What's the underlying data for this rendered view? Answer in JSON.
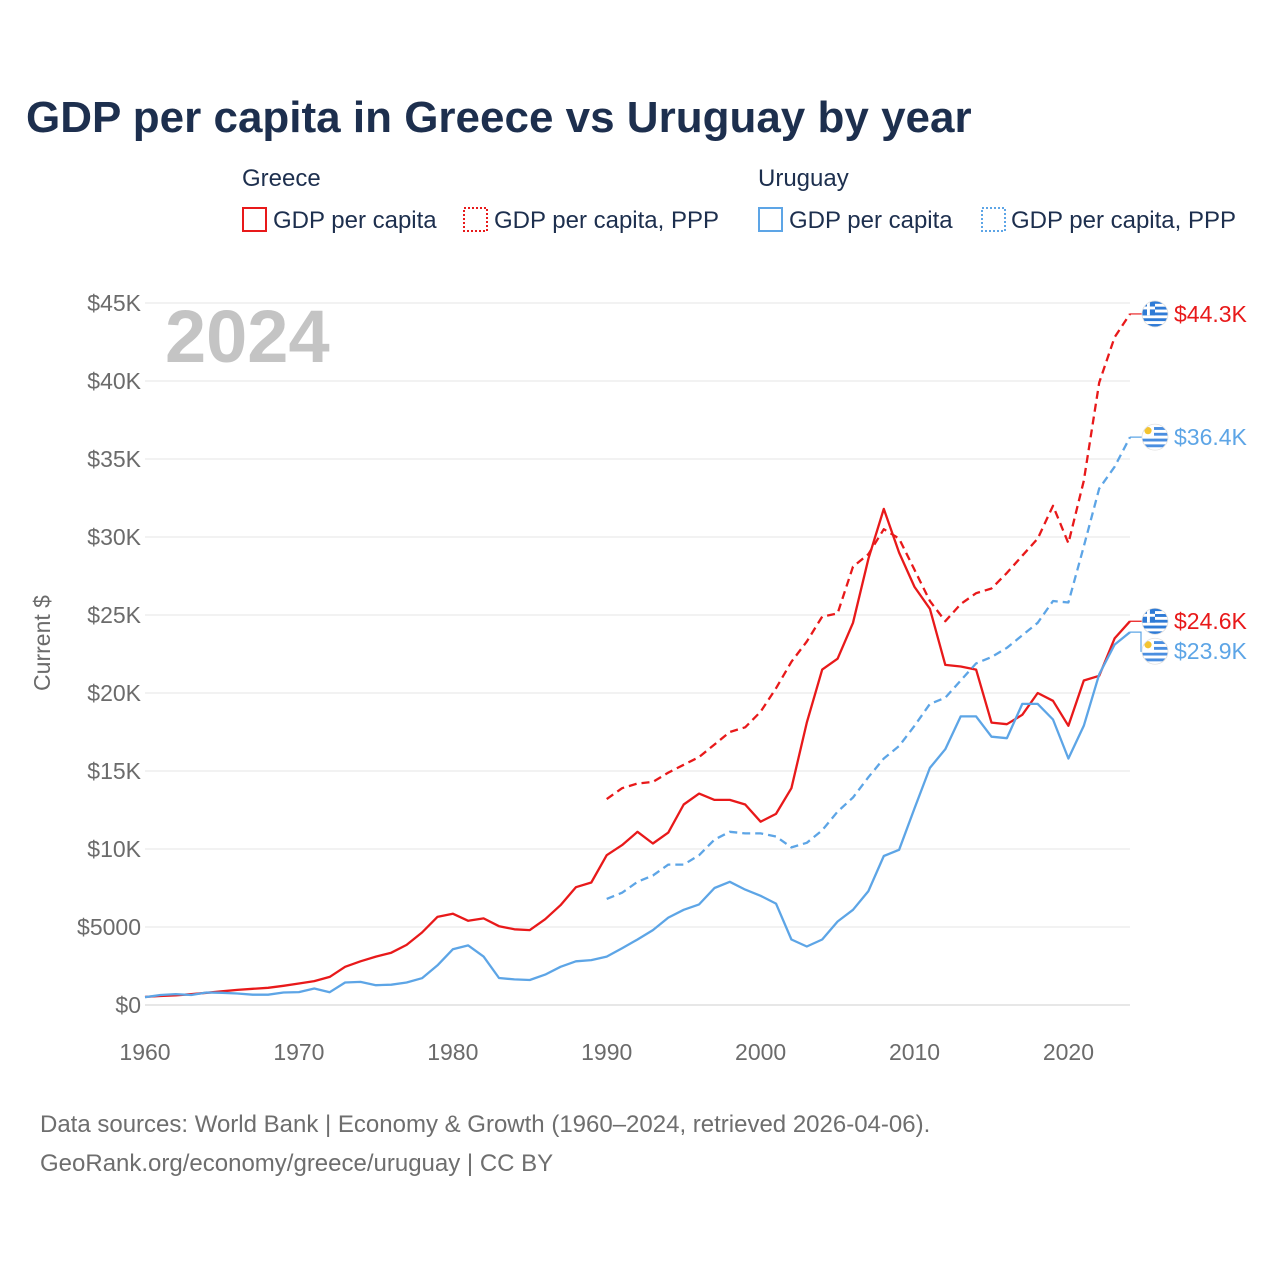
{
  "chart_data": {
    "type": "line",
    "title": "GDP per capita in Greece vs Uruguay by year",
    "xlabel": "",
    "ylabel": "Current $",
    "xlim": [
      1960,
      2024
    ],
    "ylim": [
      0,
      45000
    ],
    "x_ticks": [
      1960,
      1970,
      1980,
      1990,
      2000,
      2010,
      2020
    ],
    "x_tick_labels": [
      "1960",
      "1970",
      "1980",
      "1990",
      "2000",
      "2010",
      "2020"
    ],
    "y_ticks": [
      0,
      5000,
      10000,
      15000,
      20000,
      25000,
      30000,
      35000,
      40000,
      45000
    ],
    "y_tick_labels": [
      "$0",
      "$5000",
      "$10K",
      "$15K",
      "$20K",
      "$25K",
      "$30K",
      "$35K",
      "$40K",
      "$45K"
    ],
    "grid": true,
    "year_overlay": "2024",
    "legend": {
      "placement": "top",
      "groups": [
        {
          "country": "Greece",
          "items": [
            "GDP per capita",
            "GDP per capita, PPP"
          ]
        },
        {
          "country": "Uruguay",
          "items": [
            "GDP per capita",
            "GDP per capita, PPP"
          ]
        }
      ]
    },
    "series": [
      {
        "name": "Greece GDP per capita",
        "country": "Greece",
        "metric": "GDP per capita",
        "color": "#e8191a",
        "dash": "solid",
        "end_label": "$24.6K",
        "x": [
          1960,
          1961,
          1962,
          1963,
          1964,
          1965,
          1966,
          1967,
          1968,
          1969,
          1970,
          1971,
          1972,
          1973,
          1974,
          1975,
          1976,
          1977,
          1978,
          1979,
          1980,
          1981,
          1982,
          1983,
          1984,
          1985,
          1986,
          1987,
          1988,
          1989,
          1990,
          1991,
          1992,
          1993,
          1994,
          1995,
          1996,
          1997,
          1998,
          1999,
          2000,
          2001,
          2002,
          2003,
          2004,
          2005,
          2006,
          2007,
          2008,
          2009,
          2010,
          2011,
          2012,
          2013,
          2014,
          2015,
          2016,
          2017,
          2018,
          2019,
          2020,
          2021,
          2022,
          2023,
          2024
        ],
        "values": [
          520,
          580,
          620,
          690,
          780,
          880,
          970,
          1040,
          1100,
          1230,
          1380,
          1530,
          1800,
          2450,
          2800,
          3100,
          3350,
          3850,
          4650,
          5650,
          5850,
          5400,
          5550,
          5050,
          4850,
          4800,
          5500,
          6400,
          7550,
          7850,
          9600,
          10250,
          11100,
          10350,
          11050,
          12850,
          13550,
          13150,
          13150,
          12850,
          11750,
          12250,
          13900,
          18100,
          21500,
          22200,
          24500,
          28600,
          31800,
          29000,
          26800,
          25400,
          21800,
          21700,
          21500,
          18100,
          18000,
          18600,
          20000,
          19500,
          17900,
          20800,
          21100,
          23500,
          24600
        ]
      },
      {
        "name": "Greece GDP per capita, PPP",
        "country": "Greece",
        "metric": "GDP per capita, PPP",
        "color": "#e8191a",
        "dash": "dashed",
        "end_label": "$44.3K",
        "x": [
          1990,
          1991,
          1992,
          1993,
          1994,
          1995,
          1996,
          1997,
          1998,
          1999,
          2000,
          2001,
          2002,
          2003,
          2004,
          2005,
          2006,
          2007,
          2008,
          2009,
          2010,
          2011,
          2012,
          2013,
          2014,
          2015,
          2016,
          2017,
          2018,
          2019,
          2020,
          2021,
          2022,
          2023,
          2024
        ],
        "values": [
          13200,
          13900,
          14200,
          14300,
          14900,
          15400,
          15900,
          16700,
          17500,
          17800,
          18800,
          20300,
          22000,
          23300,
          24900,
          25100,
          28100,
          28900,
          30500,
          29900,
          27900,
          25900,
          24600,
          25700,
          26400,
          26700,
          27700,
          28800,
          29900,
          32000,
          29600,
          33600,
          39900,
          42800,
          44300
        ]
      },
      {
        "name": "Uruguay GDP per capita",
        "country": "Uruguay",
        "metric": "GDP per capita",
        "color": "#5da5e6",
        "dash": "solid",
        "end_label": "$23.9K",
        "x": [
          1960,
          1961,
          1962,
          1963,
          1964,
          1965,
          1966,
          1967,
          1968,
          1969,
          1970,
          1971,
          1972,
          1973,
          1974,
          1975,
          1976,
          1977,
          1978,
          1979,
          1980,
          1981,
          1982,
          1983,
          1984,
          1985,
          1986,
          1987,
          1988,
          1989,
          1990,
          1991,
          1992,
          1993,
          1994,
          1995,
          1996,
          1997,
          1998,
          1999,
          2000,
          2001,
          2002,
          2003,
          2004,
          2005,
          2006,
          2007,
          2008,
          2009,
          2010,
          2011,
          2012,
          2013,
          2014,
          2015,
          2016,
          2017,
          2018,
          2019,
          2020,
          2021,
          2022,
          2023,
          2024
        ],
        "values": [
          500,
          640,
          700,
          640,
          800,
          780,
          740,
          660,
          660,
          800,
          830,
          1060,
          820,
          1440,
          1480,
          1270,
          1300,
          1440,
          1720,
          2540,
          3570,
          3820,
          3100,
          1730,
          1640,
          1600,
          1950,
          2450,
          2800,
          2880,
          3100,
          3640,
          4200,
          4800,
          5600,
          6100,
          6450,
          7500,
          7900,
          7400,
          7000,
          6500,
          4200,
          3750,
          4200,
          5350,
          6100,
          7300,
          9550,
          9950,
          12600,
          15200,
          16400,
          18500,
          18500,
          17200,
          17100,
          19300,
          19300,
          18300,
          15800,
          17900,
          21200,
          23100,
          23900
        ]
      },
      {
        "name": "Uruguay GDP per capita, PPP",
        "country": "Uruguay",
        "metric": "GDP per capita, PPP",
        "color": "#5da5e6",
        "dash": "dashed",
        "end_label": "$36.4K",
        "x": [
          1990,
          1991,
          1992,
          1993,
          1994,
          1995,
          1996,
          1997,
          1998,
          1999,
          2000,
          2001,
          2002,
          2003,
          2004,
          2005,
          2006,
          2007,
          2008,
          2009,
          2010,
          2011,
          2012,
          2013,
          2014,
          2015,
          2016,
          2017,
          2018,
          2019,
          2020,
          2021,
          2022,
          2023,
          2024
        ],
        "values": [
          6800,
          7200,
          7900,
          8300,
          9000,
          9000,
          9600,
          10600,
          11100,
          11000,
          11000,
          10800,
          10100,
          10400,
          11200,
          12400,
          13300,
          14600,
          15800,
          16600,
          17900,
          19300,
          19700,
          20800,
          21900,
          22300,
          22900,
          23700,
          24500,
          25900,
          25800,
          29400,
          33100,
          34500,
          36400
        ]
      }
    ]
  },
  "footer": {
    "source_line1": "Data sources: World Bank | Economy & Growth (1960–2024, retrieved 2026-04-06).",
    "source_line2": "GeoRank.org/economy/greece/uruguay | CC BY"
  },
  "colors": {
    "greece": "#e8191a",
    "uruguay": "#5da5e6",
    "title": "#1d2f4e",
    "grid": "#e6e6e6",
    "axis_text": "#6b6b6b",
    "year_overlay": "#c4c4c4"
  },
  "icons": {
    "greece_flag": "greece-flag-icon",
    "uruguay_flag": "uruguay-flag-icon"
  }
}
